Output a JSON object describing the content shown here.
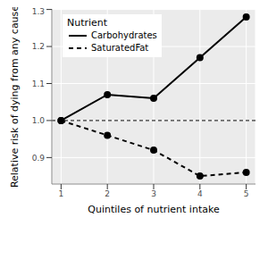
{
  "chart_data": {
    "type": "line",
    "x_label": "Quintiles of nutrient intake",
    "y_label": "Relative risk of dying from any cause",
    "x": [
      1,
      2,
      3,
      4,
      5
    ],
    "series": [
      {
        "name": "Carbohydrates",
        "color": "#000000",
        "line_style": "solid",
        "marker": "circle",
        "values": [
          1.0,
          1.07,
          1.06,
          1.17,
          1.28
        ]
      },
      {
        "name": "SaturatedFat",
        "color": "#000000",
        "line_style": "dashed",
        "marker": "circle",
        "values": [
          1.0,
          0.96,
          0.92,
          0.85,
          0.86
        ]
      }
    ],
    "reference_line": 1,
    "xlim": [
      0.8,
      5.2
    ],
    "xticks": [
      1,
      2,
      3,
      4,
      5
    ],
    "ylim": [
      0.8285,
      1.3015
    ],
    "yticks": [
      0.9,
      {
        "value": 1,
        "label": "1.0"
      },
      1.1,
      1.2,
      1.3
    ],
    "grid": true,
    "legend": "top-left",
    "legend_title": "Nutrient"
  }
}
